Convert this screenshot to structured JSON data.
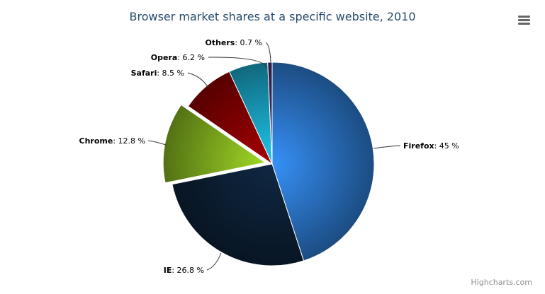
{
  "chart_data": {
    "type": "pie",
    "title": "Browser market shares at a specific website, 2010",
    "categories": [
      "Firefox",
      "IE",
      "Chrome",
      "Safari",
      "Opera",
      "Others"
    ],
    "values": [
      45.0,
      26.8,
      12.8,
      8.5,
      6.2,
      0.7
    ],
    "value_labels": [
      ": 45 %",
      ": 26.8 %",
      ": 12.8 %",
      ": 8.5 %",
      ": 6.2 %",
      ": 0.7 %"
    ],
    "sliced": [
      "Chrome"
    ],
    "colors": [
      "#2f7ed8",
      "#0d233a",
      "#8bbc21",
      "#910000",
      "#1aadce",
      "#492970"
    ],
    "legend": "none"
  },
  "credits": "Highcharts.com",
  "menu_icon": "hamburger-menu-icon"
}
